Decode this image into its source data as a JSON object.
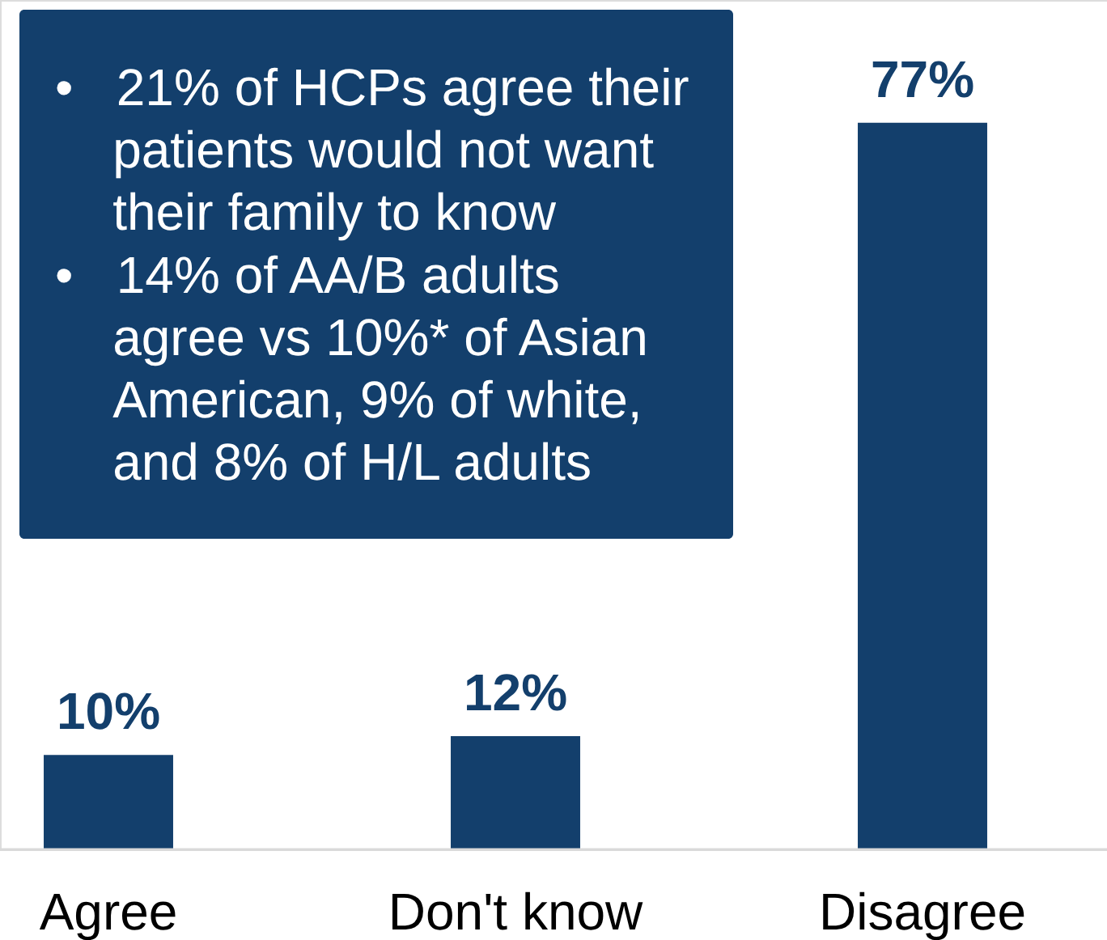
{
  "chart_data": {
    "type": "bar",
    "categories": [
      "Agree",
      "Don't know",
      "Disagree"
    ],
    "values": [
      10,
      12,
      77
    ],
    "color": "#133f6c",
    "value_labels": [
      "10%",
      "12%",
      "77%"
    ],
    "ylim": [
      0,
      90
    ],
    "tick_labels": "x",
    "annotations": [
      "• 21% of HCPs agree their patients would not want their family to know",
      "• 14% of AA/B adults agree vs 10%* of Asian American, 9% of white, and 8% of H/L adults"
    ]
  }
}
